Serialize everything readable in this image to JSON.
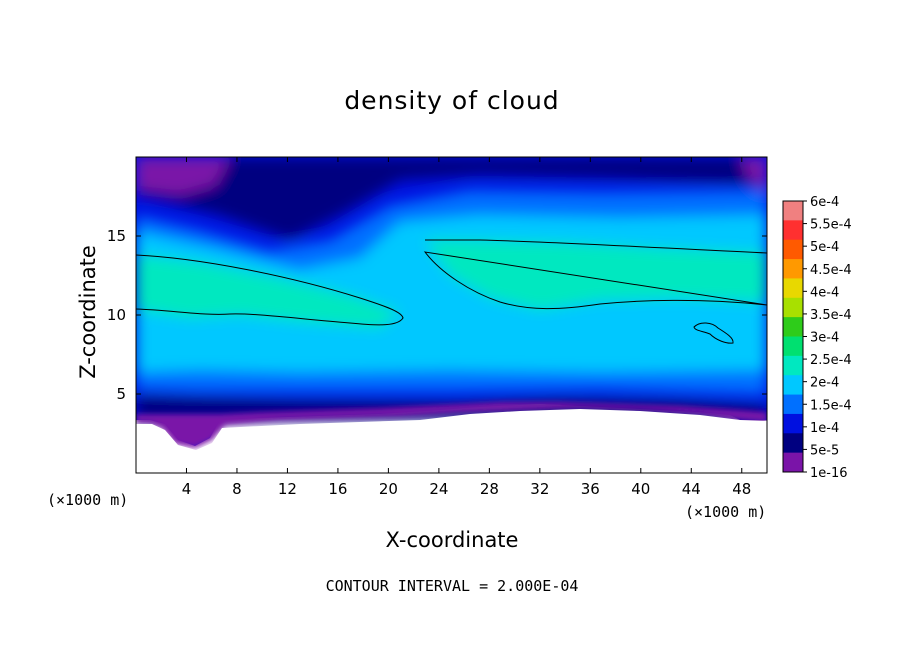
{
  "chart_data": {
    "type": "heatmap",
    "title": "density of cloud",
    "xlabel": "X-coordinate",
    "ylabel": "Z-coordinate",
    "x_unit": "(×1000 m)",
    "footer": "CONTOUR INTERVAL = 2.000E-04",
    "xlim": [
      0,
      50
    ],
    "ylim": [
      0,
      20
    ],
    "x_ticks": [
      4,
      8,
      12,
      16,
      20,
      24,
      28,
      32,
      36,
      40,
      44,
      48
    ],
    "y_ticks": [
      5,
      10,
      15
    ],
    "colorbar": {
      "labels": [
        "6e-4",
        "5.5e-4",
        "5e-4",
        "4.5e-4",
        "4e-4",
        "3.5e-4",
        "3e-4",
        "2.5e-4",
        "2e-4",
        "1.5e-4",
        "1e-4",
        "5e-5",
        "1e-16"
      ],
      "colors": [
        "#f08080",
        "#ff3030",
        "#ff5a00",
        "#ff9900",
        "#e8d800",
        "#a8e000",
        "#2ecc1a",
        "#00e070",
        "#00e8c0",
        "#00c8ff",
        "#0070ff",
        "#0010e0",
        "#000080",
        "#7a14a8"
      ]
    },
    "contour_levels": [
      0.0002
    ],
    "cloud_base_km": 3.5,
    "cloud_top_km": 20,
    "high_density_regions": [
      {
        "x_range": [
          0,
          21
        ],
        "z_range": [
          10,
          13.5
        ],
        "value_min": 0.0002
      },
      {
        "x_range": [
          23,
          50
        ],
        "z_range": [
          10.5,
          14.5
        ],
        "value_min": 0.0002
      },
      {
        "x_range": [
          44,
          47
        ],
        "z_range": [
          8.2,
          9.4
        ],
        "value_min": 0.0002
      }
    ]
  }
}
